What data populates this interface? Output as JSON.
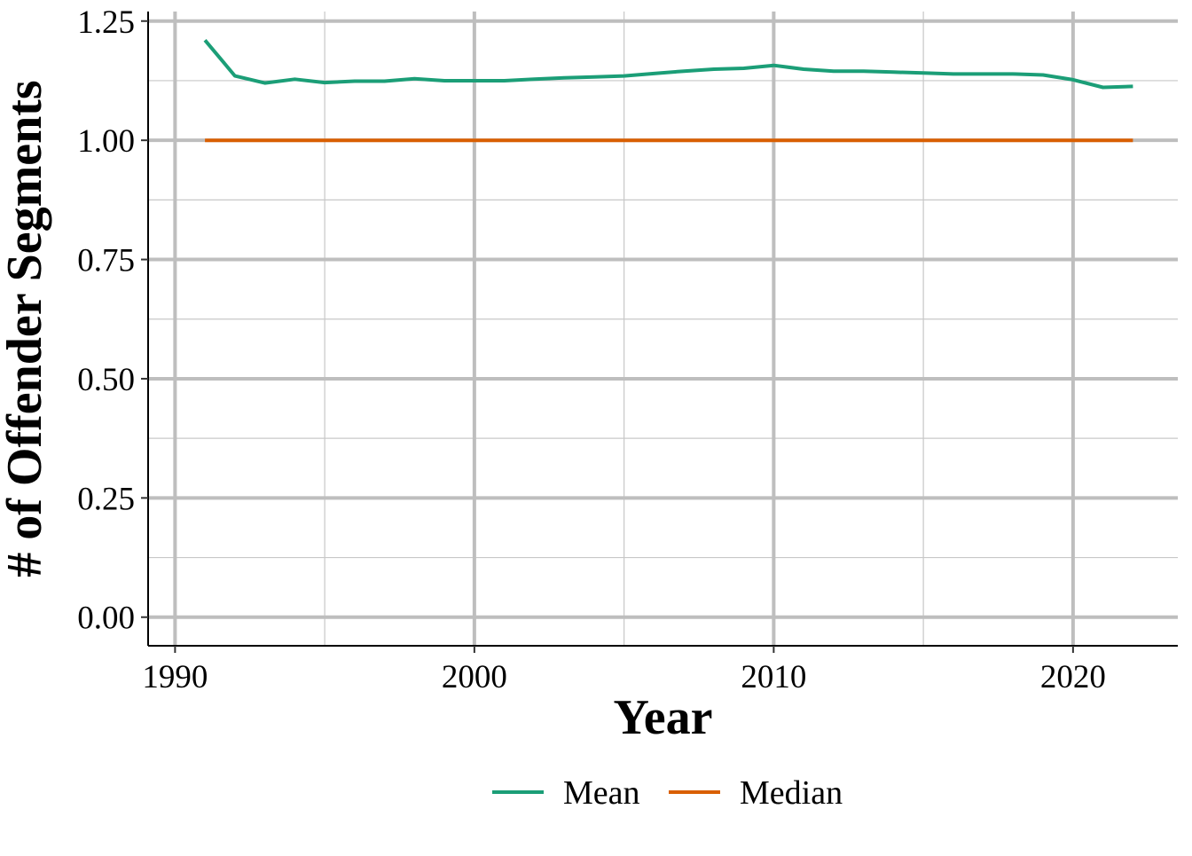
{
  "chart_data": {
    "type": "line",
    "title": "",
    "xlabel": "Year",
    "ylabel": "# of Offender Segments",
    "xlim": [
      1989.1,
      1993.1
    ],
    "ylim": [
      -0.06,
      1.27
    ],
    "x_ticks": [
      1990,
      2000,
      2010,
      2020
    ],
    "x_tick_labels": [
      "1990",
      "2000",
      "2010",
      "2020"
    ],
    "y_ticks": [
      0,
      0.25,
      0.5,
      0.75,
      1.0,
      1.25
    ],
    "y_tick_labels": [
      "0.00",
      "0.25",
      "0.50",
      "0.75",
      "1.00",
      "1.25"
    ],
    "grid": true,
    "legend_position": "bottom",
    "x": [
      1991,
      1992,
      1993,
      1994,
      1995,
      1996,
      1997,
      1998,
      1999,
      2000,
      2001,
      2002,
      2003,
      2004,
      2005,
      2006,
      2007,
      2008,
      2009,
      2010,
      2011,
      2012,
      2013,
      2014,
      2015,
      2016,
      2017,
      2018,
      2019,
      2020,
      2021,
      2022
    ],
    "series": [
      {
        "name": "Mean",
        "color": "#1b9e77",
        "values": [
          1.21,
          1.135,
          1.12,
          1.128,
          1.121,
          1.124,
          1.124,
          1.129,
          1.125,
          1.125,
          1.125,
          1.128,
          1.131,
          1.133,
          1.135,
          1.14,
          1.145,
          1.149,
          1.151,
          1.157,
          1.149,
          1.145,
          1.145,
          1.143,
          1.141,
          1.139,
          1.139,
          1.139,
          1.137,
          1.127,
          1.111,
          1.113
        ]
      },
      {
        "name": "Median",
        "color": "#d95f02",
        "values": [
          1,
          1,
          1,
          1,
          1,
          1,
          1,
          1,
          1,
          1,
          1,
          1,
          1,
          1,
          1,
          1,
          1,
          1,
          1,
          1,
          1,
          1,
          1,
          1,
          1,
          1,
          1,
          1,
          1,
          1,
          1,
          1
        ]
      }
    ]
  }
}
